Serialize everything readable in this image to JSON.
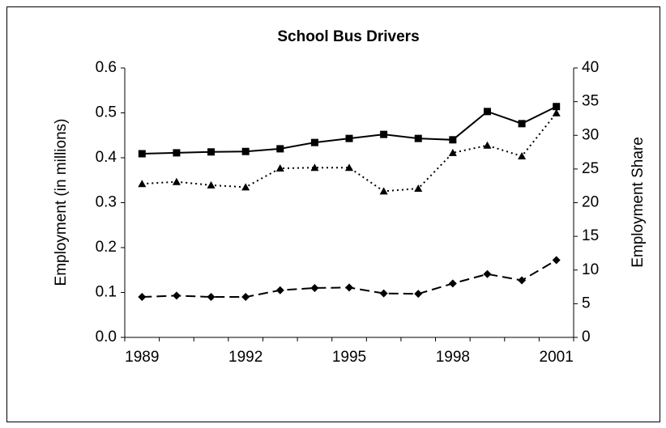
{
  "chart_data": {
    "type": "line",
    "title": "School Bus Drivers",
    "y_label": "Employment (in millions)",
    "y2_label": "Employment Share",
    "categories": [
      "1989",
      null,
      null,
      "1992",
      null,
      null,
      "1995",
      null,
      null,
      "1998",
      null,
      null,
      "2001"
    ],
    "ylim": [
      0,
      0.6
    ],
    "yticks": [
      {
        "value": 0,
        "label": "0.0"
      },
      0.1,
      0.2,
      0.3,
      0.4,
      0.5,
      0.6
    ],
    "y2lim": [
      0,
      40
    ],
    "y2ticks": [
      0,
      5,
      10,
      15,
      20,
      25,
      30,
      35,
      40
    ],
    "series": [
      {
        "color": "#000000",
        "dash": "solid",
        "marker": "square",
        "axis": "y",
        "values": [
          0.409,
          0.411,
          0.413,
          0.414,
          0.42,
          0.434,
          0.443,
          0.452,
          0.443,
          0.44,
          0.503,
          0.476,
          0.514
        ]
      },
      {
        "color": "#000000",
        "dash": "dotted",
        "marker": "triangle",
        "axis": "y2",
        "values": [
          22.8,
          23.1,
          22.6,
          22.3,
          25.1,
          25.2,
          25.2,
          21.7,
          22.1,
          27.4,
          28.5,
          26.9,
          33.3
        ]
      },
      {
        "color": "#000000",
        "dash": "dashed",
        "marker": "diamond",
        "axis": "y",
        "values": [
          0.09,
          0.093,
          0.09,
          0.09,
          0.105,
          0.11,
          0.111,
          0.098,
          0.097,
          0.12,
          0.141,
          0.127,
          0.172
        ]
      }
    ]
  }
}
